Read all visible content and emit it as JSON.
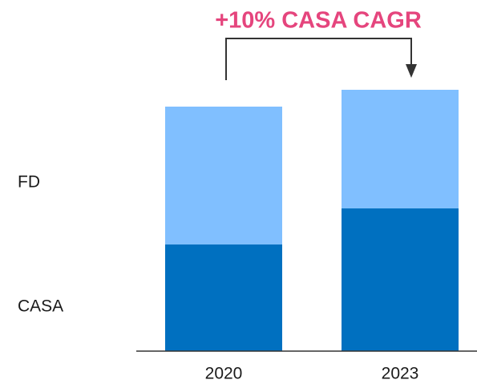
{
  "chart_data": {
    "type": "stacked_bar",
    "annotation": "+10% CASA CAGR",
    "categories": [
      "2020",
      "2023"
    ],
    "series": [
      {
        "name": "CASA",
        "color": "#0070c0",
        "values": [
          133,
          178
        ]
      },
      {
        "name": "FD",
        "color": "#80bfff",
        "values": [
          172,
          148
        ]
      }
    ],
    "ylim": [
      0,
      340
    ]
  }
}
